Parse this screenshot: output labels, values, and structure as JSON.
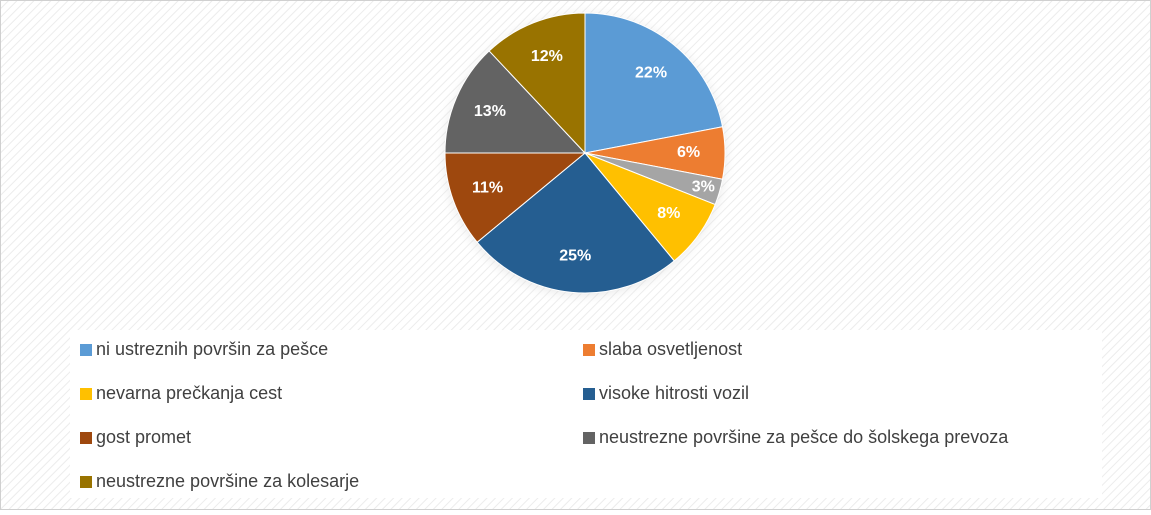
{
  "chart_data": {
    "type": "pie",
    "categories": [
      "ni ustreznih površin za pešce",
      "slaba osvetljenost",
      null,
      "nevarna prečkanja cest",
      "visoke hitrosti vozil",
      "gost promet",
      "neustrezne površine za pešce do šolskega prevoza",
      "neustrezne površine za kolesarje"
    ],
    "values": [
      22,
      6,
      3,
      8,
      25,
      11,
      13,
      12
    ],
    "value_labels": [
      "22%",
      "6%",
      "3%",
      "8%",
      "25%",
      "11%",
      "13%",
      "12%"
    ],
    "colors": [
      "#5b9bd5",
      "#ed7d31",
      "#a5a5a5",
      "#ffc000",
      "#255e91",
      "#9e480e",
      "#636363",
      "#997300"
    ]
  }
}
